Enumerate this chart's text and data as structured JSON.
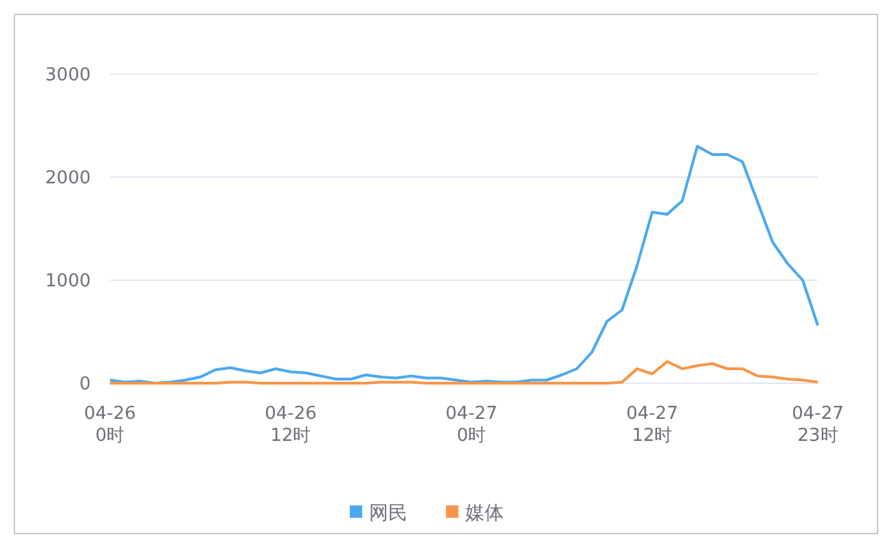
{
  "chart_data": {
    "type": "line",
    "categories": [
      "04-26\n0时",
      null,
      null,
      null,
      null,
      null,
      null,
      null,
      null,
      null,
      null,
      null,
      "04-26\n12时",
      null,
      null,
      null,
      null,
      null,
      null,
      null,
      null,
      null,
      null,
      null,
      "04-27\n0时",
      null,
      null,
      null,
      null,
      null,
      null,
      null,
      null,
      null,
      null,
      null,
      "04-27\n12时",
      null,
      null,
      null,
      null,
      null,
      null,
      null,
      null,
      null,
      null,
      "04-27\n23时"
    ],
    "ylim": [
      0,
      3000
    ],
    "yticks": [
      0,
      1000,
      2000,
      3000
    ],
    "grid": "y",
    "legend": "bottom",
    "marker": "none",
    "line_style": "solid",
    "series": [
      {
        "name": "网民",
        "color": "#4ba9ee",
        "values": [
          30,
          10,
          20,
          0,
          10,
          30,
          60,
          130,
          150,
          120,
          100,
          140,
          110,
          100,
          70,
          40,
          40,
          80,
          60,
          50,
          70,
          50,
          50,
          30,
          10,
          20,
          10,
          10,
          30,
          30,
          80,
          140,
          300,
          600,
          710,
          1140,
          1660,
          1640,
          1770,
          2300,
          2220,
          2220,
          2150,
          1760,
          1370,
          1160,
          1000,
          560
        ]
      },
      {
        "name": "媒体",
        "color": "#f7964a",
        "values": [
          0,
          0,
          0,
          0,
          0,
          0,
          0,
          0,
          10,
          10,
          0,
          0,
          0,
          0,
          0,
          0,
          0,
          0,
          10,
          10,
          10,
          0,
          0,
          0,
          0,
          0,
          0,
          0,
          0,
          0,
          0,
          0,
          0,
          0,
          10,
          140,
          90,
          210,
          140,
          170,
          190,
          140,
          140,
          70,
          60,
          40,
          30,
          10
        ]
      }
    ]
  }
}
